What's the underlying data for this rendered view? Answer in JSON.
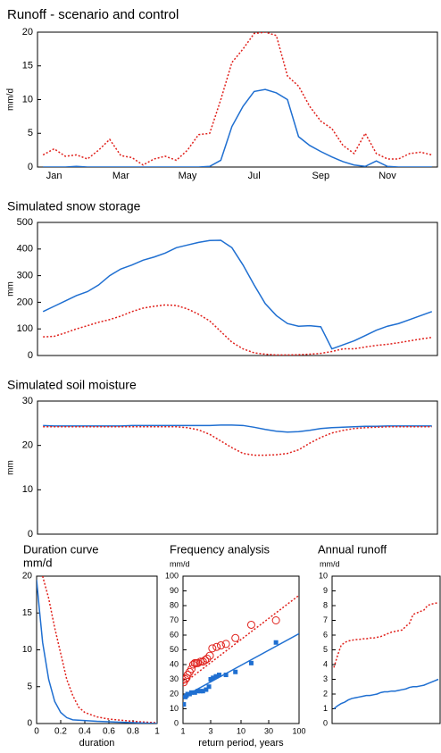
{
  "chart_data": [
    {
      "type": "line",
      "title": "Runoff - scenario and control",
      "ylabel": "mm/d",
      "categories": [
        null,
        "Jan",
        null,
        null,
        null,
        null,
        null,
        "Mar",
        null,
        null,
        null,
        null,
        null,
        "May",
        null,
        null,
        null,
        null,
        null,
        "Jul",
        null,
        null,
        null,
        null,
        null,
        "Sep",
        null,
        null,
        null,
        null,
        null,
        "Nov",
        null,
        null,
        null,
        null
      ],
      "ylim": [
        0,
        20
      ],
      "yticks": [
        0,
        5,
        10,
        15,
        20
      ],
      "series": [
        {
          "color": "#e0201b",
          "dash": true,
          "values": [
            1.8,
            2.7,
            1.6,
            1.8,
            1.2,
            2.5,
            4.1,
            1.7,
            1.4,
            0.3,
            1.2,
            1.6,
            1.0,
            2.5,
            4.8,
            5.0,
            10,
            15.5,
            17.5,
            19.8,
            20,
            19.5,
            13.5,
            12,
            9,
            6.8,
            5.7,
            3.2,
            2.0,
            5.0,
            2.0,
            1.2,
            1.2,
            2.0,
            2.2,
            1.8
          ]
        },
        {
          "color": "#1f6fd1",
          "dash": false,
          "values": [
            0,
            0,
            0,
            0.1,
            0,
            0,
            0,
            0,
            0,
            0,
            0,
            0,
            0,
            0,
            0,
            0.1,
            1,
            6,
            9,
            11.2,
            11.5,
            11,
            10,
            4.5,
            3.2,
            2.3,
            1.5,
            0.8,
            0.3,
            0.1,
            0.9,
            0.1,
            0,
            0,
            0,
            0
          ]
        }
      ]
    },
    {
      "type": "line",
      "title": "Simulated snow storage",
      "ylabel": "mm",
      "ylim": [
        0,
        500
      ],
      "yticks": [
        0,
        100,
        200,
        300,
        400,
        500
      ],
      "series": [
        {
          "color": "#1f6fd1",
          "dash": false,
          "values": [
            165,
            185,
            205,
            225,
            240,
            265,
            300,
            325,
            340,
            358,
            370,
            385,
            405,
            415,
            425,
            432,
            433,
            405,
            340,
            265,
            195,
            150,
            120,
            110,
            112,
            108,
            25,
            40,
            55,
            75,
            95,
            110,
            120,
            135,
            150,
            165
          ]
        },
        {
          "color": "#e0201b",
          "dash": true,
          "values": [
            70,
            72,
            85,
            100,
            112,
            125,
            135,
            148,
            165,
            178,
            185,
            190,
            188,
            175,
            155,
            130,
            90,
            50,
            25,
            10,
            5,
            2,
            2,
            3,
            5,
            8,
            15,
            25,
            25,
            32,
            38,
            42,
            48,
            55,
            62,
            68
          ]
        }
      ]
    },
    {
      "type": "line",
      "title": "Simulated soil moisture",
      "ylabel": "mm",
      "ylim": [
        0,
        30
      ],
      "yticks": [
        0,
        10,
        20,
        30
      ],
      "series": [
        {
          "color": "#1f6fd1",
          "dash": false,
          "values": [
            24.5,
            24.4,
            24.4,
            24.4,
            24.4,
            24.4,
            24.4,
            24.4,
            24.5,
            24.5,
            24.5,
            24.5,
            24.5,
            24.5,
            24.5,
            24.5,
            24.6,
            24.6,
            24.5,
            24.1,
            23.6,
            23.2,
            23.0,
            23.1,
            23.4,
            23.8,
            24.0,
            24.1,
            24.2,
            24.3,
            24.3,
            24.4,
            24.4,
            24.4,
            24.4,
            24.4
          ]
        },
        {
          "color": "#e0201b",
          "dash": true,
          "values": [
            24.2,
            24.2,
            24.2,
            24.2,
            24.2,
            24.2,
            24.2,
            24.2,
            24.2,
            24.2,
            24.2,
            24.2,
            24.2,
            24.0,
            23.5,
            22.5,
            21,
            19.5,
            18.2,
            17.8,
            17.8,
            17.9,
            18.2,
            19.0,
            20.5,
            21.8,
            22.8,
            23.4,
            23.8,
            24.0,
            24.1,
            24.2,
            24.2,
            24.2,
            24.2,
            24.2
          ]
        }
      ]
    },
    {
      "type": "line",
      "title": "Duration curve",
      "subtitle": "mm/d",
      "xlabel": "duration",
      "xlim": [
        0,
        1
      ],
      "xticks": [
        0,
        0.2,
        0.4,
        0.6,
        0.8,
        1
      ],
      "ylim": [
        0,
        20
      ],
      "yticks": [
        0,
        5,
        10,
        15,
        20
      ],
      "series": [
        {
          "color": "#e0201b",
          "dash": true,
          "x": [
            0.05,
            0.1,
            0.15,
            0.2,
            0.25,
            0.3,
            0.35,
            0.4,
            0.5,
            0.6,
            0.8,
            1
          ],
          "values": [
            20,
            17,
            13,
            9.5,
            6,
            3.8,
            2.2,
            1.5,
            0.9,
            0.6,
            0.3,
            0.1
          ]
        },
        {
          "color": "#1f6fd1",
          "dash": false,
          "x": [
            0,
            0.02,
            0.05,
            0.1,
            0.15,
            0.2,
            0.25,
            0.3,
            0.5,
            1
          ],
          "values": [
            19.5,
            16,
            11,
            6,
            3,
            1.5,
            0.8,
            0.5,
            0.3,
            0
          ]
        }
      ]
    },
    {
      "type": "scatter",
      "title": "Frequency analysis",
      "subtitle": "mm/d",
      "xlabel": "return period, years",
      "xlog": true,
      "xlim": [
        1,
        100
      ],
      "xticks": [
        1,
        3,
        10,
        30,
        100
      ],
      "ylim": [
        0,
        100
      ],
      "yticks": [
        0,
        10,
        20,
        30,
        40,
        50,
        60,
        70,
        80,
        90,
        100
      ],
      "series": [
        {
          "color": "#e0201b",
          "marker": "circle",
          "x": [
            1.03,
            1.1,
            1.15,
            1.2,
            1.3,
            1.4,
            1.5,
            1.6,
            1.7,
            1.8,
            2,
            2.2,
            2.4,
            2.6,
            2.9,
            3.2,
            3.8,
            4.5,
            5.5,
            8,
            15,
            40
          ],
          "values": [
            28,
            30,
            31,
            33,
            35,
            37,
            40,
            41,
            41,
            41,
            42,
            42,
            43,
            44,
            46,
            51,
            52,
            53,
            54,
            58,
            67,
            70
          ]
        },
        {
          "color": "#1f6fd1",
          "marker": "square",
          "x": [
            1.03,
            1.1,
            1.15,
            1.2,
            1.3,
            1.4,
            1.6,
            1.8,
            2,
            2.2,
            2.5,
            2.8,
            3,
            3.3,
            3.7,
            4.2,
            5.5,
            8,
            15,
            40
          ],
          "values": [
            13,
            18,
            19,
            20,
            20,
            21,
            21,
            22,
            22,
            22,
            23,
            25,
            30,
            31,
            32,
            33,
            33,
            35,
            41,
            55
          ]
        },
        {
          "color": "#e0201b",
          "marker": "none",
          "dash": true,
          "x": [
            1,
            100
          ],
          "values": [
            27,
            87
          ]
        },
        {
          "color": "#1f6fd1",
          "marker": "none",
          "dash": false,
          "x": [
            1,
            100
          ],
          "values": [
            18,
            61
          ]
        }
      ]
    },
    {
      "type": "line",
      "title": "Annual runoff",
      "subtitle": "mm/d",
      "ylim": [
        0,
        10
      ],
      "yticks": [
        0,
        1,
        2,
        3,
        4,
        5,
        6,
        7,
        8,
        9,
        10
      ],
      "series": [
        {
          "color": "#e0201b",
          "dash": true,
          "values": [
            3.8,
            4.6,
            5.3,
            5.5,
            5.6,
            5.65,
            5.7,
            5.7,
            5.75,
            5.75,
            5.8,
            5.8,
            5.85,
            5.9,
            6.0,
            6.1,
            6.2,
            6.25,
            6.3,
            6.35,
            6.6,
            6.8,
            7.4,
            7.5,
            7.6,
            7.7,
            8.0,
            8.1,
            8.15,
            8.2
          ]
        },
        {
          "color": "#1f6fd1",
          "dash": false,
          "values": [
            1.0,
            1.2,
            1.35,
            1.45,
            1.6,
            1.7,
            1.75,
            1.8,
            1.85,
            1.9,
            1.9,
            1.95,
            2.0,
            2.1,
            2.15,
            2.15,
            2.2,
            2.2,
            2.25,
            2.3,
            2.35,
            2.45,
            2.5,
            2.5,
            2.55,
            2.6,
            2.7,
            2.8,
            2.9,
            3.0
          ]
        }
      ]
    }
  ]
}
